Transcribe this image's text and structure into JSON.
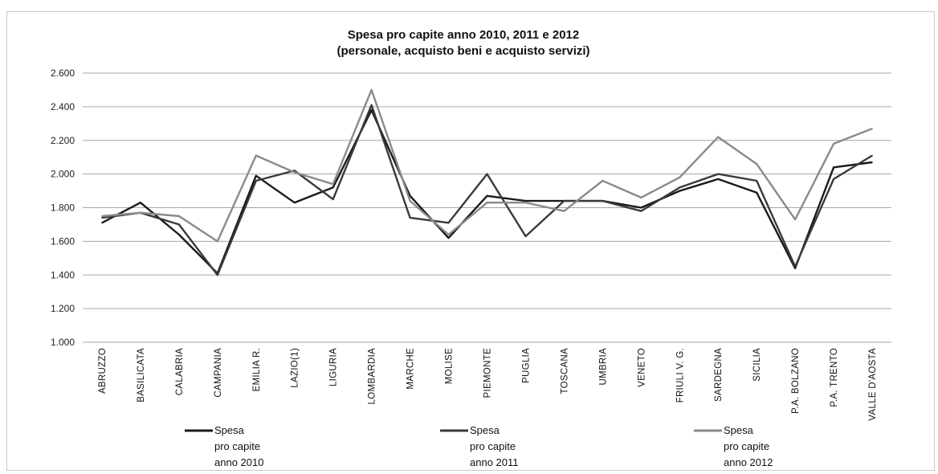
{
  "chart_data": {
    "type": "line",
    "title_lines": [
      "Spesa pro capite anno 2010, 2011 e 2012",
      "(personale, acquisto beni e acquisto servizi)"
    ],
    "xlabel": "",
    "ylabel": "",
    "ylim": [
      1000,
      2600
    ],
    "y_ticks": [
      {
        "value": 1000,
        "label": "1.000"
      },
      {
        "value": 1200,
        "label": "1.200"
      },
      {
        "value": 1400,
        "label": "1.400"
      },
      {
        "value": 1600,
        "label": "1.600"
      },
      {
        "value": 1800,
        "label": "1.800"
      },
      {
        "value": 2000,
        "label": "2.000"
      },
      {
        "value": 2200,
        "label": "2.200"
      },
      {
        "value": 2400,
        "label": "2.400"
      },
      {
        "value": 2600,
        "label": "2.600"
      }
    ],
    "grid": true,
    "legend_position": "bottom",
    "categories": [
      "ABRUZZO",
      "BASILICATA",
      "CALABRIA",
      "CAMPANIA",
      "EMILIA R.",
      "LAZIO(1)",
      "LIGURIA",
      "LOMBARDIA",
      "MARCHE",
      "MOLISE",
      "PIEMONTE",
      "PUGLIA",
      "TOSCANA",
      "UMBRIA",
      "VENETO",
      "FRIULI V. G.",
      "SARDEGNA",
      "SICILIA",
      "P.A. BOLZANO",
      "P.A. TRENTO",
      "VALLE D'AOSTA"
    ],
    "series": [
      {
        "name": "Spesa pro capite anno 2010",
        "legend_lines": [
          "Spesa",
          "pro capite",
          "anno 2010"
        ],
        "color": "#1a1a1a",
        "values": [
          1710,
          1830,
          1640,
          1410,
          1990,
          1830,
          1920,
          2380,
          1870,
          1620,
          1870,
          1840,
          1840,
          1840,
          1800,
          1900,
          1970,
          1890,
          1440,
          2040,
          2070
        ]
      },
      {
        "name": "Spesa pro capite anno 2011",
        "legend_lines": [
          "Spesa",
          "pro capite",
          "anno 2011"
        ],
        "color": "#3a3a3a",
        "values": [
          1740,
          1770,
          1700,
          1400,
          1960,
          2020,
          1850,
          2410,
          1740,
          1710,
          2000,
          1630,
          1840,
          1840,
          1780,
          1920,
          2000,
          1960,
          1450,
          1970,
          2110
        ]
      },
      {
        "name": "Spesa pro capite anno 2012",
        "legend_lines": [
          "Spesa",
          "pro capite",
          "anno 2012"
        ],
        "color": "#8a8a8a",
        "values": [
          1750,
          1770,
          1750,
          1600,
          2110,
          2010,
          1940,
          2500,
          1840,
          1640,
          1830,
          1830,
          1780,
          1960,
          1860,
          1980,
          2220,
          2060,
          1730,
          2180,
          2270
        ]
      }
    ]
  }
}
